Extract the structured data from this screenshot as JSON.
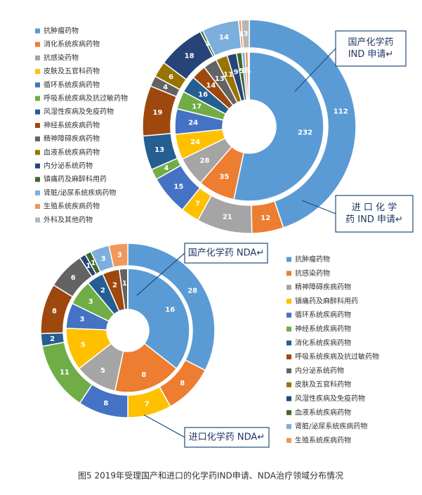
{
  "chart_data": [
    {
      "type": "donut",
      "categories": [
        "抗肿瘤药物",
        "消化系统疾病药物",
        "抗感染药物",
        "皮肤及五官科药物",
        "循环系统疾病药物",
        "呼吸系统疾病及抗过敏药物",
        "风湿性疾病及免疫药物",
        "神经系统疾病药物",
        "精神障碍疾病药物",
        "血液系统疾病药物",
        "内分泌系统药物",
        "镇痛药及麻醉科用药",
        "肾脏/泌尿系统疾病药物",
        "生殖系统疾病药物",
        "外科及其他药物"
      ],
      "colors": [
        "#5b9bd5",
        "#ed7d31",
        "#a5a5a5",
        "#ffc000",
        "#4472c4",
        "#70ad47",
        "#255e91",
        "#9e480e",
        "#636363",
        "#997300",
        "#264478",
        "#43682b",
        "#7cafdd",
        "#f1975a",
        "#b7b7b7"
      ],
      "series": [
        {
          "ring": "inner",
          "values": [
            232,
            35,
            28,
            24,
            24,
            17,
            16,
            14,
            13,
            11,
            9,
            5,
            3,
            3,
            1
          ]
        },
        {
          "ring": "outer",
          "values": [
            112,
            12,
            21,
            7,
            15,
            4,
            13,
            19,
            4,
            6,
            18,
            1,
            14,
            1,
            3
          ]
        }
      ],
      "annotations": [
        {
          "lines": [
            "国产化学药",
            "IND 申请↵"
          ],
          "ring": "inner"
        },
        {
          "lines": [
            "进 口 化 学",
            "药 IND 申请↵"
          ],
          "ring": "outer"
        }
      ]
    },
    {
      "type": "donut",
      "categories": [
        "抗肿瘤药物",
        "抗感染药物",
        "精神障碍疾病药物",
        "镇痛药及麻醉科用药",
        "循环系统疾病药物",
        "神经系统疾病药物",
        "消化系统疾病药物",
        "呼吸系统疾病及抗过敏药物",
        "内分泌系统药物",
        "皮肤及五官科药物",
        "风湿性疾病及免疫药物",
        "血液系统疾病药物",
        "肾脏/泌尿系统疾病药物",
        "生殖系统疾病药物"
      ],
      "colors": [
        "#5b9bd5",
        "#ed7d31",
        "#a5a5a5",
        "#ffc000",
        "#4472c4",
        "#70ad47",
        "#255e91",
        "#9e480e",
        "#636363",
        "#997300",
        "#264478",
        "#43682b",
        "#7cafdd",
        "#f1975a"
      ],
      "series": [
        {
          "ring": "inner",
          "values": [
            16,
            8,
            5,
            5,
            3,
            3,
            2,
            2,
            1,
            0,
            0,
            0,
            0,
            0
          ]
        },
        {
          "ring": "outer",
          "values": [
            28,
            8,
            0,
            7,
            8,
            11,
            2,
            8,
            6,
            0,
            1,
            1,
            3,
            3
          ]
        }
      ],
      "annotations": [
        {
          "lines": [
            "国产化学药 NDA↵"
          ],
          "ring": "inner"
        },
        {
          "lines": [
            "进口化学药 NDA↵"
          ],
          "ring": "outer"
        }
      ]
    }
  ],
  "caption": "图5 2019年受理国产和进口的化学药IND申请、NDA治疗领域分布情况"
}
